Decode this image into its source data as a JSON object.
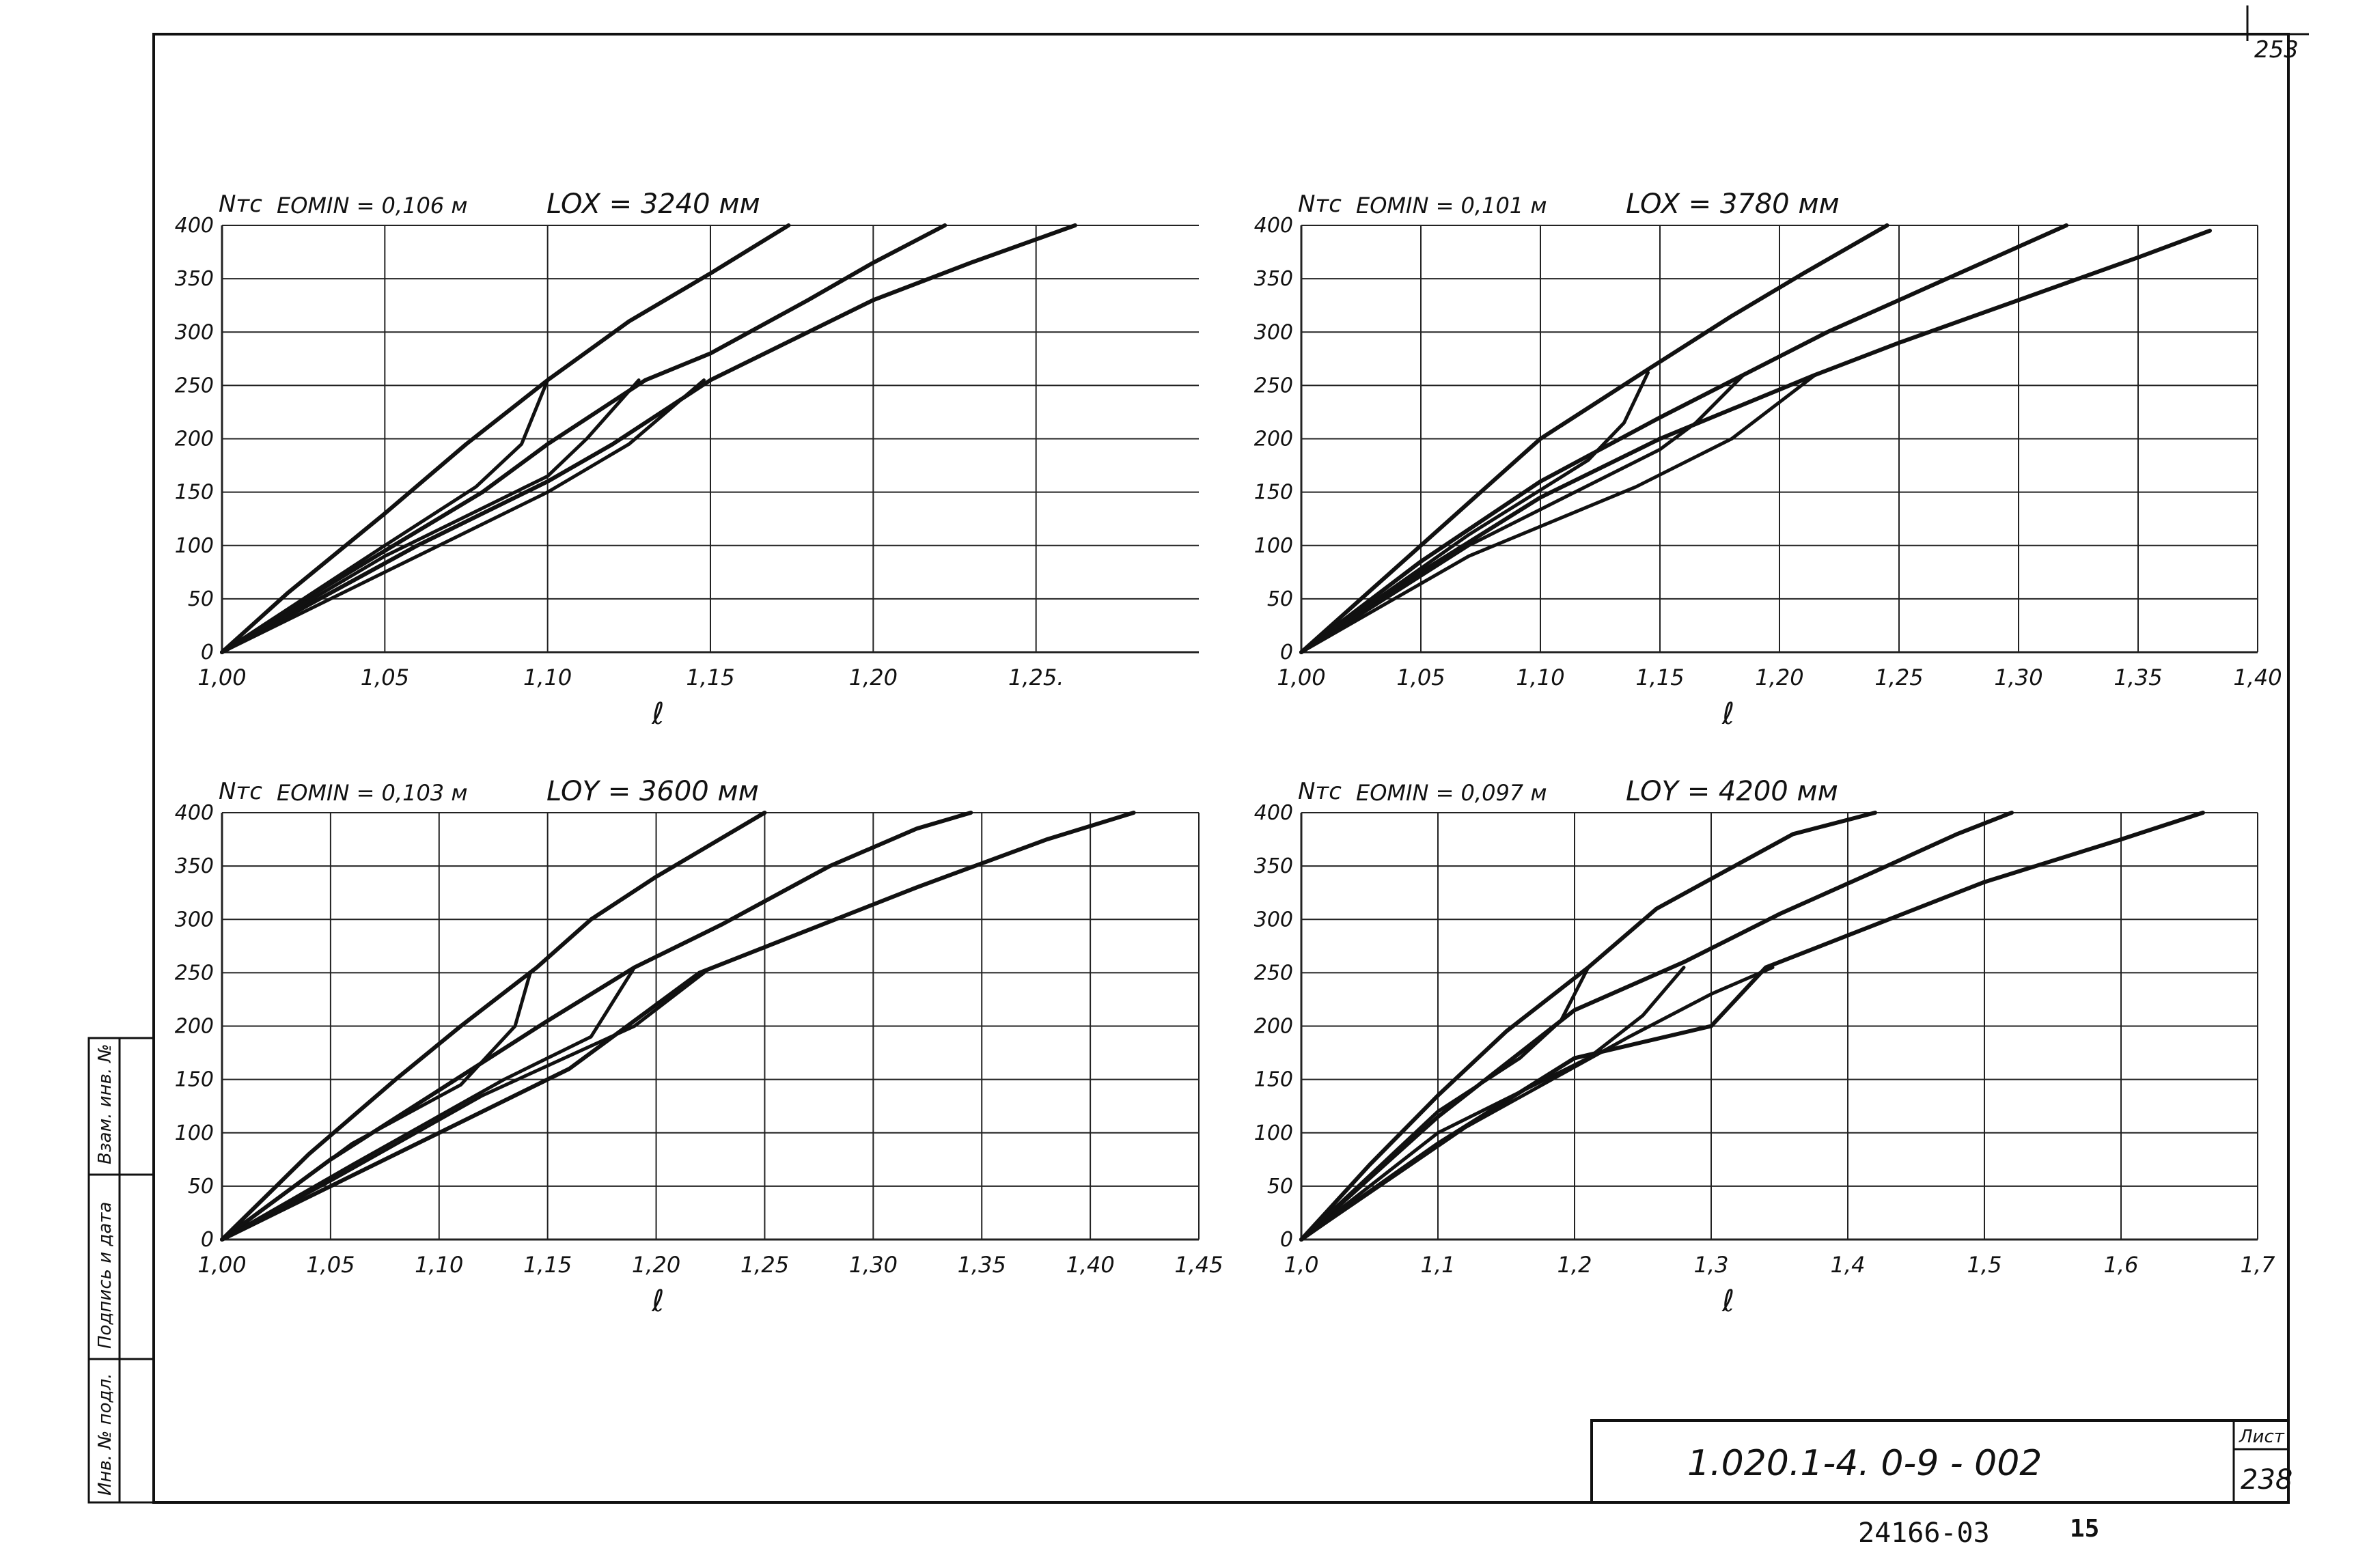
{
  "sheet": {
    "page_number": "253",
    "doc_code": "1.020.1-4.   0-9 - 002",
    "list_label": "Лист",
    "list_number": "238",
    "archive_number": "24166-03",
    "archive_page": "15",
    "side_stamp": [
      "Инв. № подл.",
      "Подпись и дата",
      "Взам. инв. №"
    ]
  },
  "chart_data": [
    {
      "type": "line",
      "ylabel": "Nтс",
      "xlabel": "ℓ",
      "annotations": [
        "EOMIN = 0,106 м",
        "LOX = 3240 мм"
      ],
      "xlim": [
        1.0,
        1.3
      ],
      "ylim": [
        0,
        400
      ],
      "xticks": [
        1.0,
        1.05,
        1.1,
        1.15,
        1.2,
        1.25
      ],
      "xtick_labels": [
        "1,00",
        "1,05",
        "1,10",
        "1,15",
        "1,20",
        "1,25."
      ],
      "yticks": [
        0,
        50,
        100,
        150,
        200,
        250,
        300,
        350,
        400
      ],
      "ytick_labels": [
        "0",
        "50",
        "100",
        "150",
        "200",
        "250",
        "300",
        "350",
        "400"
      ],
      "grid": true,
      "series": [
        {
          "x": [
            1.0,
            1.02,
            1.05,
            1.075,
            1.1,
            1.125,
            1.15,
            1.174
          ],
          "y": [
            0,
            55,
            130,
            195,
            255,
            310,
            355,
            400
          ]
        },
        {
          "x": [
            1.0,
            1.03,
            1.05,
            1.08,
            1.1,
            1.13,
            1.15,
            1.18,
            1.2,
            1.222
          ],
          "y": [
            0,
            58,
            95,
            150,
            195,
            255,
            280,
            330,
            365,
            400
          ]
        },
        {
          "x": [
            1.0,
            1.03,
            1.06,
            1.1,
            1.12,
            1.15,
            1.18,
            1.2,
            1.23,
            1.262
          ],
          "y": [
            0,
            50,
            100,
            160,
            195,
            255,
            300,
            330,
            365,
            400
          ]
        },
        {
          "x": [
            1.0,
            1.05,
            1.078,
            1.092,
            1.1
          ],
          "y": [
            0,
            100,
            155,
            195,
            255
          ]
        },
        {
          "x": [
            1.0,
            1.05,
            1.1,
            1.112,
            1.128
          ],
          "y": [
            0,
            90,
            165,
            200,
            255
          ]
        },
        {
          "x": [
            1.0,
            1.05,
            1.1,
            1.125,
            1.148
          ],
          "y": [
            0,
            75,
            150,
            195,
            255
          ]
        }
      ]
    },
    {
      "type": "line",
      "ylabel": "Nтс",
      "xlabel": "ℓ",
      "annotations": [
        "EOMIN = 0,101 м",
        "LOX = 3780 мм"
      ],
      "xlim": [
        1.0,
        1.4
      ],
      "ylim": [
        0,
        400
      ],
      "xticks": [
        1.0,
        1.05,
        1.1,
        1.15,
        1.2,
        1.25,
        1.3,
        1.35,
        1.4
      ],
      "xtick_labels": [
        "1,00",
        "1,05",
        "1,10",
        "1,15",
        "1,20",
        "1,25",
        "1,30",
        "1,35",
        "1,40"
      ],
      "yticks": [
        0,
        50,
        100,
        150,
        200,
        250,
        300,
        350,
        400
      ],
      "ytick_labels": [
        "0",
        "50",
        "100",
        "150",
        "200",
        "250",
        "300",
        "350",
        "400"
      ],
      "grid": true,
      "series": [
        {
          "x": [
            1.0,
            1.03,
            1.07,
            1.1,
            1.145,
            1.18,
            1.21,
            1.245
          ],
          "y": [
            0,
            60,
            140,
            200,
            265,
            315,
            355,
            400
          ]
        },
        {
          "x": [
            1.0,
            1.05,
            1.1,
            1.15,
            1.185,
            1.22,
            1.26,
            1.3,
            1.32
          ],
          "y": [
            0,
            85,
            160,
            220,
            260,
            300,
            340,
            380,
            400
          ]
        },
        {
          "x": [
            1.0,
            1.05,
            1.1,
            1.15,
            1.215,
            1.25,
            1.3,
            1.35,
            1.38
          ],
          "y": [
            0,
            75,
            145,
            200,
            260,
            290,
            330,
            370,
            395
          ]
        },
        {
          "x": [
            1.0,
            1.07,
            1.12,
            1.135,
            1.145
          ],
          "y": [
            0,
            110,
            180,
            215,
            262
          ]
        },
        {
          "x": [
            1.0,
            1.07,
            1.15,
            1.165,
            1.185
          ],
          "y": [
            0,
            100,
            190,
            215,
            260
          ]
        },
        {
          "x": [
            1.0,
            1.07,
            1.14,
            1.18,
            1.215
          ],
          "y": [
            0,
            90,
            155,
            200,
            260
          ]
        }
      ]
    },
    {
      "type": "line",
      "ylabel": "Nтс",
      "xlabel": "ℓ",
      "annotations": [
        "EOMIN = 0,103 м",
        "LOY = 3600 мм"
      ],
      "xlim": [
        1.0,
        1.45
      ],
      "ylim": [
        0,
        400
      ],
      "xticks": [
        1.0,
        1.05,
        1.1,
        1.15,
        1.2,
        1.25,
        1.3,
        1.35,
        1.4,
        1.45
      ],
      "xtick_labels": [
        "1,00",
        "1,05",
        "1,10",
        "1,15",
        "1,20",
        "1,25",
        "1,30",
        "1,35",
        "1,40",
        "1,45"
      ],
      "yticks": [
        0,
        50,
        100,
        150,
        200,
        250,
        300,
        350,
        400
      ],
      "ytick_labels": [
        "0",
        "50",
        "100",
        "150",
        "200",
        "250",
        "300",
        "350",
        "400"
      ],
      "grid": true,
      "series": [
        {
          "x": [
            1.0,
            1.04,
            1.08,
            1.11,
            1.145,
            1.17,
            1.2,
            1.25
          ],
          "y": [
            0,
            80,
            150,
            200,
            255,
            300,
            340,
            400
          ]
        },
        {
          "x": [
            1.0,
            1.05,
            1.1,
            1.15,
            1.19,
            1.23,
            1.28,
            1.32,
            1.345
          ],
          "y": [
            0,
            75,
            140,
            205,
            255,
            295,
            350,
            385,
            400
          ]
        },
        {
          "x": [
            1.0,
            1.05,
            1.1,
            1.16,
            1.22,
            1.27,
            1.32,
            1.38,
            1.42
          ],
          "y": [
            0,
            50,
            100,
            160,
            250,
            290,
            330,
            375,
            400
          ]
        },
        {
          "x": [
            1.0,
            1.06,
            1.11,
            1.135,
            1.142
          ],
          "y": [
            0,
            90,
            145,
            200,
            250
          ]
        },
        {
          "x": [
            1.0,
            1.06,
            1.13,
            1.17,
            1.19
          ],
          "y": [
            0,
            70,
            150,
            190,
            255
          ]
        },
        {
          "x": [
            1.0,
            1.05,
            1.12,
            1.19,
            1.222
          ],
          "y": [
            0,
            55,
            135,
            200,
            250
          ]
        }
      ]
    },
    {
      "type": "line",
      "ylabel": "Nтс",
      "xlabel": "ℓ",
      "annotations": [
        "EOMIN = 0,097 м",
        "LOY = 4200 мм"
      ],
      "xlim": [
        1.0,
        1.7
      ],
      "ylim": [
        0,
        400
      ],
      "xticks": [
        1.0,
        1.1,
        1.2,
        1.3,
        1.4,
        1.5,
        1.6,
        1.7
      ],
      "xtick_labels": [
        "1,0",
        "1,1",
        "1,2",
        "1,3",
        "1,4",
        "1,5",
        "1,6",
        "1,7"
      ],
      "yticks": [
        0,
        50,
        100,
        150,
        200,
        250,
        300,
        350,
        400
      ],
      "ytick_labels": [
        "0",
        "50",
        "100",
        "150",
        "200",
        "250",
        "300",
        "350",
        "400"
      ],
      "grid": true,
      "series": [
        {
          "x": [
            1.0,
            1.05,
            1.1,
            1.15,
            1.21,
            1.26,
            1.31,
            1.36,
            1.42
          ],
          "y": [
            0,
            70,
            135,
            195,
            255,
            310,
            345,
            380,
            400
          ]
        },
        {
          "x": [
            1.0,
            1.1,
            1.2,
            1.28,
            1.35,
            1.42,
            1.48,
            1.52
          ],
          "y": [
            0,
            115,
            215,
            260,
            305,
            345,
            380,
            400
          ]
        },
        {
          "x": [
            1.0,
            1.1,
            1.2,
            1.3,
            1.34,
            1.4,
            1.5,
            1.6,
            1.66
          ],
          "y": [
            0,
            90,
            170,
            200,
            255,
            285,
            335,
            375,
            400
          ]
        },
        {
          "x": [
            1.0,
            1.1,
            1.16,
            1.19,
            1.21
          ],
          "y": [
            0,
            120,
            170,
            205,
            255
          ]
        },
        {
          "x": [
            1.0,
            1.1,
            1.21,
            1.25,
            1.28
          ],
          "y": [
            0,
            100,
            170,
            210,
            255
          ]
        },
        {
          "x": [
            1.0,
            1.12,
            1.24,
            1.3,
            1.345
          ],
          "y": [
            0,
            105,
            190,
            230,
            255
          ]
        }
      ]
    }
  ]
}
